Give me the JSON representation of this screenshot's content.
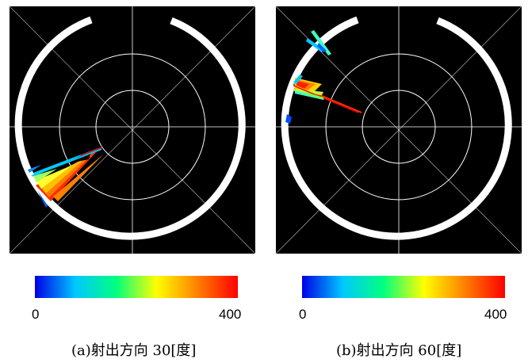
{
  "panels": [
    {
      "caption": "(a)射出方向 30[度]"
    },
    {
      "caption": "(b)射出方向 60[度]"
    }
  ],
  "colorbar": {
    "min_label": "0",
    "max_label": "400",
    "colors": [
      "#0000e6",
      "#00c8ff",
      "#00ff80",
      "#ffff00",
      "#ff8000",
      "#ff0000"
    ]
  },
  "colors": {
    "background": "#000000",
    "grid": "#ffffff",
    "beam": [
      "#ff2000",
      "#ff6000",
      "#ffa000",
      "#ffe000",
      "#c0ff40",
      "#40ffc0",
      "#00c8ff",
      "#0040ff"
    ]
  }
}
